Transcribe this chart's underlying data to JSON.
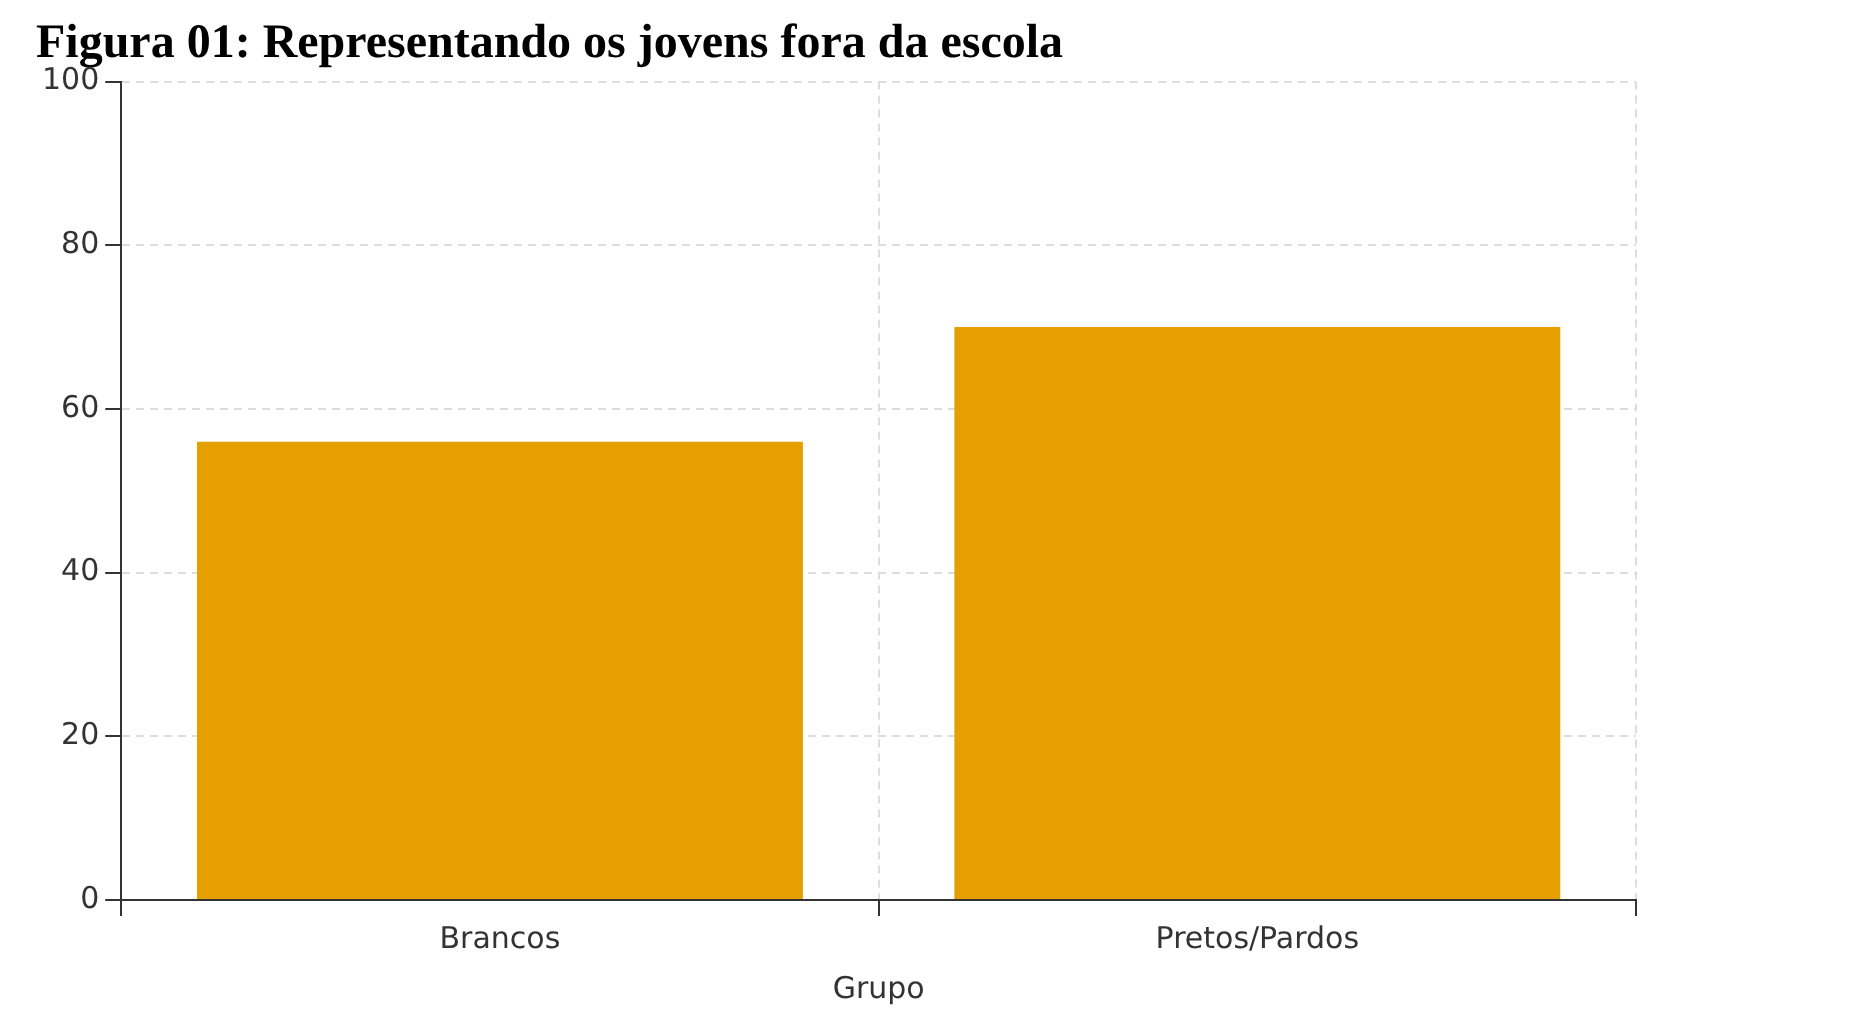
{
  "chart_data": {
    "type": "bar",
    "title": "Figura 01: Representando os jovens fora da escola",
    "xlabel": "Grupo",
    "categories": [
      "Brancos",
      "Pretos/Pardos"
    ],
    "values": [
      56,
      70
    ],
    "color": "#e5a000",
    "ylim": [
      0,
      100
    ],
    "yticks": [
      0,
      20,
      40,
      60,
      80,
      100
    ],
    "grid": true
  }
}
